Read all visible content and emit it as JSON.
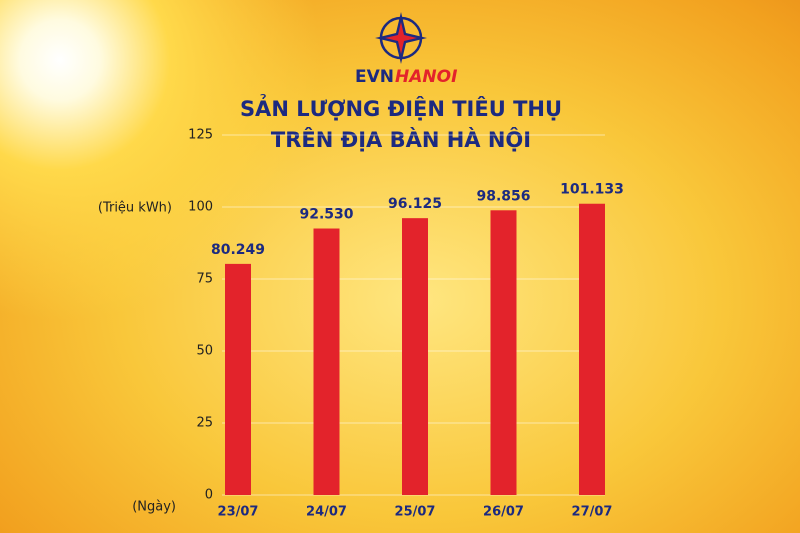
{
  "logo": {
    "part1": "EVN",
    "part2": "HANOI"
  },
  "chart_data": {
    "type": "bar",
    "title": [
      "SẢN LƯỢNG ĐIỆN TIÊU THỤ",
      "TRÊN ĐỊA BÀN HÀ NỘI"
    ],
    "y_label": "(Triệu kWh)",
    "x_label": "(Ngày)",
    "categories": [
      "23/07",
      "24/07",
      "25/07",
      "26/07",
      "27/07"
    ],
    "values": [
      80.249,
      92.53,
      96.125,
      98.856,
      101.133
    ],
    "value_labels": [
      "80.249",
      "92.530",
      "96.125",
      "98.856",
      "101.133"
    ],
    "color": "#e3232b",
    "ylim": [
      0,
      125
    ],
    "yticks": [
      0,
      25,
      50,
      75,
      100,
      125
    ],
    "grid": true
  }
}
